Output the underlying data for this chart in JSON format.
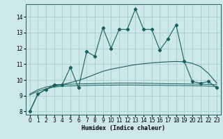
{
  "xlabel": "Humidex (Indice chaleur)",
  "x_ticks": [
    0,
    1,
    2,
    3,
    4,
    5,
    6,
    7,
    8,
    9,
    10,
    11,
    12,
    13,
    14,
    15,
    16,
    17,
    18,
    19,
    20,
    21,
    22,
    23
  ],
  "xlim": [
    -0.5,
    23.5
  ],
  "ylim": [
    7.8,
    14.8
  ],
  "yticks": [
    8,
    9,
    10,
    11,
    12,
    13,
    14
  ],
  "bg_color": "#cce8e8",
  "grid_color": "#aacccc",
  "line_color": "#1a5f5f",
  "zigzag_x": [
    0,
    1,
    2,
    3,
    4,
    5,
    6,
    7,
    8,
    9,
    10,
    11,
    12,
    13,
    14,
    15,
    16,
    17,
    18,
    19,
    20,
    21,
    22,
    23
  ],
  "zigzag_y": [
    8.0,
    9.1,
    9.4,
    9.7,
    9.7,
    10.8,
    9.5,
    11.8,
    11.5,
    13.3,
    12.0,
    13.2,
    13.2,
    14.5,
    13.2,
    13.2,
    11.9,
    12.6,
    13.5,
    11.2,
    9.9,
    9.8,
    9.9,
    9.5
  ],
  "smooth_upper_x": [
    0,
    1,
    2,
    3,
    4,
    5,
    6,
    7,
    8,
    9,
    10,
    11,
    12,
    13,
    14,
    15,
    16,
    17,
    18,
    19,
    20,
    21,
    22,
    23
  ],
  "smooth_upper_y": [
    8.0,
    9.1,
    9.4,
    9.6,
    9.7,
    9.83,
    9.97,
    10.15,
    10.35,
    10.55,
    10.68,
    10.78,
    10.88,
    10.97,
    11.03,
    11.08,
    11.12,
    11.15,
    11.17,
    11.15,
    11.05,
    10.85,
    10.4,
    9.8
  ],
  "smooth_mid_x": [
    0,
    1,
    2,
    3,
    4,
    5,
    6,
    7,
    8,
    9,
    10,
    11,
    12,
    13,
    14,
    15,
    16,
    17,
    18,
    19,
    20,
    21,
    22,
    23
  ],
  "smooth_mid_y": [
    9.1,
    9.38,
    9.55,
    9.65,
    9.7,
    9.73,
    9.75,
    9.76,
    9.77,
    9.78,
    9.79,
    9.8,
    9.8,
    9.8,
    9.79,
    9.78,
    9.77,
    9.76,
    9.76,
    9.75,
    9.74,
    9.73,
    9.72,
    9.7
  ],
  "smooth_low_x": [
    0,
    1,
    2,
    3,
    4,
    5,
    6,
    7,
    8,
    9,
    10,
    11,
    12,
    13,
    14,
    15,
    16,
    17,
    18,
    19,
    20,
    21,
    22,
    23
  ],
  "smooth_low_y": [
    9.05,
    9.28,
    9.44,
    9.55,
    9.6,
    9.62,
    9.64,
    9.65,
    9.66,
    9.67,
    9.67,
    9.68,
    9.68,
    9.68,
    9.67,
    9.66,
    9.66,
    9.65,
    9.65,
    9.64,
    9.63,
    9.62,
    9.61,
    9.59
  ]
}
